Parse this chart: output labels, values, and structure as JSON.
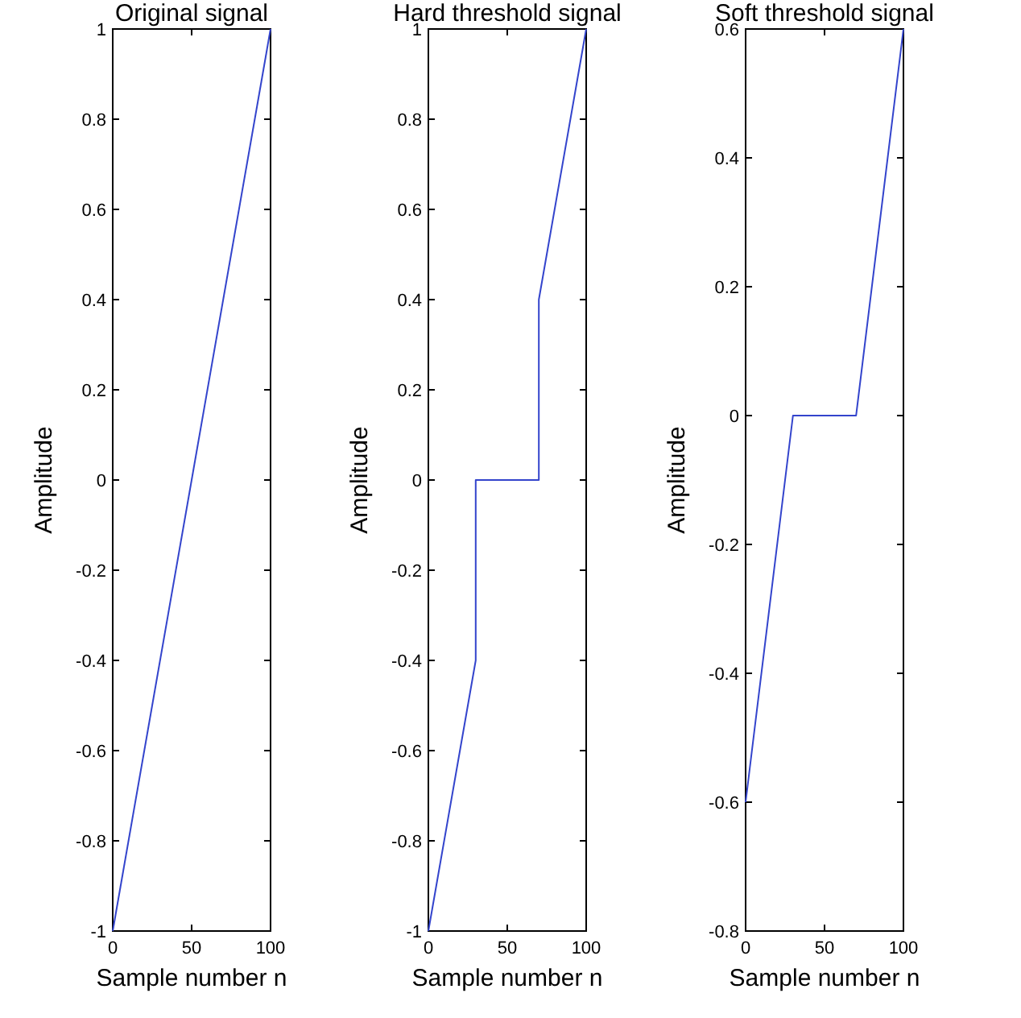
{
  "chart_data": [
    {
      "type": "line",
      "title": "Original signal",
      "xlabel": "Sample number n",
      "ylabel": "Amplitude",
      "xlim": [
        0,
        100
      ],
      "xticks": [
        0,
        50,
        100
      ],
      "ylim": [
        -1,
        1
      ],
      "yticks": [
        -1,
        -0.8,
        -0.6,
        -0.4,
        -0.2,
        0,
        0.2,
        0.4,
        0.6,
        0.8,
        1
      ],
      "series": [
        {
          "color": "#3344cc",
          "x": [
            0,
            100
          ],
          "values": [
            -1,
            1
          ]
        }
      ]
    },
    {
      "type": "line",
      "title": "Hard threshold signal",
      "xlabel": "Sample number n",
      "ylabel": "Amplitude",
      "xlim": [
        0,
        100
      ],
      "xticks": [
        0,
        50,
        100
      ],
      "ylim": [
        -1,
        1
      ],
      "yticks": [
        -1,
        -0.8,
        -0.6,
        -0.4,
        -0.2,
        0,
        0.2,
        0.4,
        0.6,
        0.8,
        1
      ],
      "series": [
        {
          "color": "#3344cc",
          "x": [
            0,
            30,
            30,
            70,
            70,
            100
          ],
          "values": [
            -1,
            -0.4,
            0,
            0,
            0.4,
            1
          ]
        }
      ]
    },
    {
      "type": "line",
      "title": "Soft threshold signal",
      "xlabel": "Sample number n",
      "ylabel": "Amplitude",
      "xlim": [
        0,
        100
      ],
      "xticks": [
        0,
        50,
        100
      ],
      "ylim": [
        -0.8,
        0.6
      ],
      "yticks": [
        -0.8,
        -0.6,
        -0.4,
        -0.2,
        0,
        0.2,
        0.4,
        0.6
      ],
      "series": [
        {
          "color": "#3344cc",
          "x": [
            0,
            30,
            70,
            100
          ],
          "values": [
            -0.6,
            0,
            0,
            0.6
          ]
        }
      ]
    }
  ]
}
